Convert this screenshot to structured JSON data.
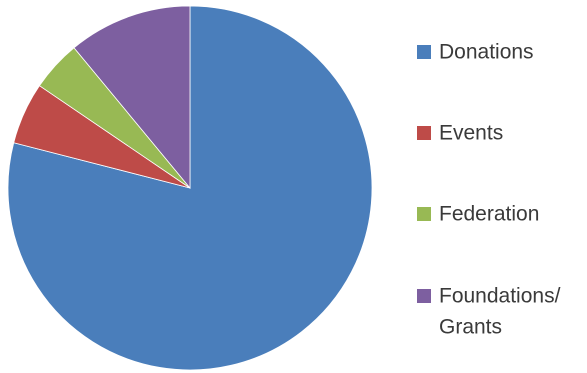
{
  "chart_data": {
    "type": "pie",
    "title": "",
    "legend_position": "right",
    "categories": [
      "Donations",
      "Events",
      "Federation",
      "Foundations/ Grants"
    ],
    "values": [
      79,
      5.5,
      4.5,
      11
    ],
    "legend": [
      {
        "lines": [
          "Donations"
        ]
      },
      {
        "lines": [
          "Events"
        ]
      },
      {
        "lines": [
          "Federation"
        ]
      },
      {
        "lines": [
          "Foundations/",
          "Grants"
        ]
      }
    ],
    "colors": [
      "#4a7ebb",
      "#be4b48",
      "#98b954",
      "#7d5fa0"
    ]
  }
}
